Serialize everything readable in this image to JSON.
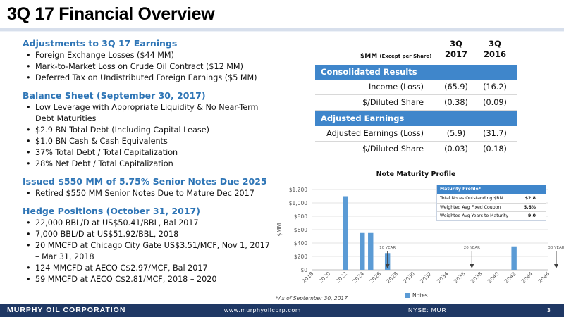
{
  "header": {
    "title": "3Q 17 Financial Overview"
  },
  "sections": [
    {
      "heading": "Adjustments to 3Q 17 Earnings",
      "items": [
        "Foreign Exchange Losses ($44 MM)",
        "Mark-to-Market Loss on Crude Oil Contract ($12 MM)",
        "Deferred Tax on Undistributed Foreign Earnings ($5 MM)"
      ]
    },
    {
      "heading": "Balance Sheet (September 30, 2017)",
      "items": [
        "Low Leverage with Appropriate Liquidity & No Near-Term Debt Maturities",
        "$2.9 BN Total Debt (Including Capital Lease)",
        "$1.0 BN Cash & Cash Equivalents",
        "37% Total Debt / Total Capitalization",
        "28% Net Debt / Total Capitalization"
      ]
    },
    {
      "heading": "Issued $550 MM of 5.75% Senior Notes Due 2025",
      "items": [
        "Retired $550 MM Senior Notes Due to Mature Dec 2017"
      ]
    },
    {
      "heading": "Hedge Positions (October 31, 2017)",
      "items": [
        "22,000 BBL/D at US$50.41/BBL, Bal 2017",
        "7,000 BBL/D at US$51.92/BBL, 2018",
        "20 MMCFD at Chicago City Gate US$3.51/MCF, Nov 1, 2017 – Mar 31, 2018",
        "124 MMCFD at AECO C$2.97/MCF, Bal 2017",
        "59 MMCFD at AECO C$2.81/MCF, 2018 – 2020"
      ]
    }
  ],
  "table": {
    "unit_label": "$MM",
    "unit_note": "(Except per Share)",
    "col1": {
      "line1": "3Q",
      "line2": "2017"
    },
    "col2": {
      "line1": "3Q",
      "line2": "2016"
    },
    "consolidated_header": "Consolidated Results",
    "consolidated_rows": [
      {
        "label": "Income (Loss)",
        "v2017": "(65.9)",
        "v2016": "(16.2)"
      },
      {
        "label": "$/Diluted Share",
        "v2017": "(0.38)",
        "v2016": "(0.09)"
      }
    ],
    "adjusted_header": "Adjusted Earnings",
    "adjusted_rows": [
      {
        "label": "Adjusted Earnings (Loss)",
        "v2017": "(5.9)",
        "v2016": "(31.7)"
      },
      {
        "label": "$/Diluted Share",
        "v2017": "(0.03)",
        "v2016": "(0.18)"
      }
    ]
  },
  "chart_data": {
    "type": "bar",
    "title": "Note Maturity Profile",
    "ylabel": "$MM",
    "xlabel": "",
    "ylim": [
      0,
      1200
    ],
    "yticks": [
      "$0",
      "$200",
      "$400",
      "$600",
      "$800",
      "$1,000",
      "$1,200"
    ],
    "ytick_values": [
      0,
      200,
      400,
      600,
      800,
      1000,
      1200
    ],
    "x_start": 2018,
    "x_end": 2046,
    "xtick_labels": [
      "2018",
      "2020",
      "2022",
      "2024",
      "2026",
      "2028",
      "2030",
      "2032",
      "2034",
      "2036",
      "2038",
      "2040",
      "2042",
      "2044",
      "2046"
    ],
    "series": [
      {
        "name": "Notes",
        "color": "#5b9bd5",
        "points": [
          {
            "year": 2022,
            "value": 1100
          },
          {
            "year": 2024,
            "value": 550
          },
          {
            "year": 2025,
            "value": 550
          },
          {
            "year": 2027,
            "value": 250
          },
          {
            "year": 2042,
            "value": 350
          }
        ]
      }
    ],
    "annotations": [
      {
        "label": "10 YEAR",
        "year": 2027
      },
      {
        "label": "20 YEAR",
        "year": 2037
      },
      {
        "label": "30 YEAR",
        "year": 2047
      }
    ],
    "legend": "bottom",
    "footnote": "*As of September 30, 2017"
  },
  "maturity_profile": {
    "header": "Maturity Profile*",
    "rows": [
      {
        "label": "Total Notes Outstanding $BN",
        "value": "$2.8"
      },
      {
        "label": "Weighted Avg Fixed Coupon",
        "value": "5.6%"
      },
      {
        "label": "Weighted Avg Years to Maturity",
        "value": "9.0"
      }
    ]
  },
  "footer": {
    "company": "MURPHY OIL CORPORATION",
    "website": "www.murphyoilcorp.com",
    "ticker": "NYSE: MUR",
    "page": "3"
  }
}
